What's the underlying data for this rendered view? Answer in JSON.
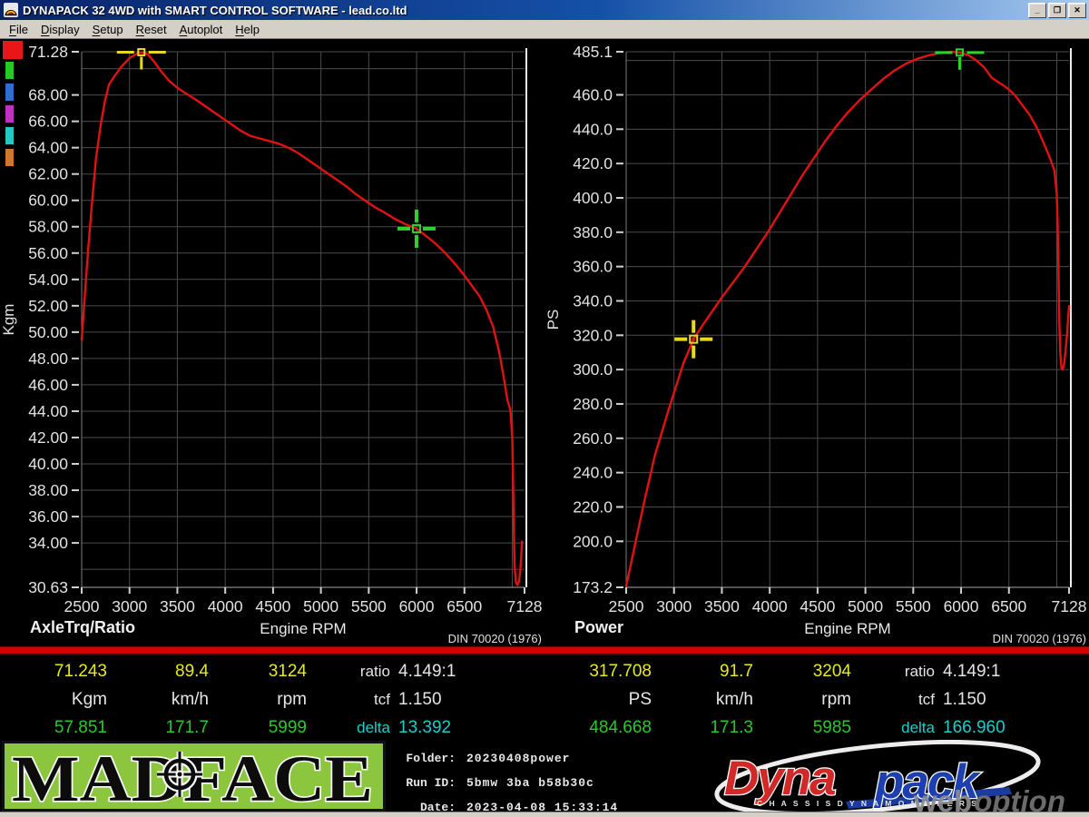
{
  "window": {
    "title": "DYNAPACK 32 4WD with SMART CONTROL SOFTWARE - lead.co.ltd",
    "minimize": "_",
    "restore": "❐",
    "close": "✕"
  },
  "menu": {
    "items": [
      {
        "hotkey": "F",
        "rest": "ile"
      },
      {
        "hotkey": "D",
        "rest": "isplay"
      },
      {
        "hotkey": "S",
        "rest": "etup"
      },
      {
        "hotkey": "R",
        "rest": "eset"
      },
      {
        "hotkey": "A",
        "rest": "utoplot"
      },
      {
        "hotkey": "H",
        "rest": "elp"
      }
    ]
  },
  "legend": {
    "colors": [
      "#e81616",
      "#22cc22",
      "#2e6ed4",
      "#c32ec3",
      "#22c8c8",
      "#d4762a"
    ]
  },
  "chart_data": [
    {
      "type": "line",
      "title": "AxleTrq/Ratio",
      "xlabel": "Engine RPM",
      "ylabel": "Kgm",
      "standard": "DIN 70020 (1976)",
      "xlim": [
        2500,
        7128
      ],
      "ylim": [
        30.63,
        71.28
      ],
      "x_ticks": [
        {
          "v": 2500,
          "t": "2500"
        },
        {
          "v": 3000,
          "t": "3000"
        },
        {
          "v": 3500,
          "t": "3500"
        },
        {
          "v": 4000,
          "t": "4000"
        },
        {
          "v": 4500,
          "t": "4500"
        },
        {
          "v": 5000,
          "t": "5000"
        },
        {
          "v": 5500,
          "t": "5500"
        },
        {
          "v": 6000,
          "t": "6000"
        },
        {
          "v": 6500,
          "t": "6500"
        },
        {
          "v": 7128,
          "t": "7128"
        }
      ],
      "grid_x": [
        3000,
        3500,
        4000,
        4500,
        5000,
        5500,
        6000,
        6500,
        7000
      ],
      "y_ticks": [
        {
          "v": 71.28,
          "t": "71.28"
        },
        {
          "v": 68,
          "t": "68.00"
        },
        {
          "v": 66,
          "t": "66.00"
        },
        {
          "v": 64,
          "t": "64.00"
        },
        {
          "v": 62,
          "t": "62.00"
        },
        {
          "v": 60,
          "t": "60.00"
        },
        {
          "v": 58,
          "t": "58.00"
        },
        {
          "v": 56,
          "t": "56.00"
        },
        {
          "v": 54,
          "t": "54.00"
        },
        {
          "v": 52,
          "t": "52.00"
        },
        {
          "v": 50,
          "t": "50.00"
        },
        {
          "v": 48,
          "t": "48.00"
        },
        {
          "v": 46,
          "t": "46.00"
        },
        {
          "v": 44,
          "t": "44.00"
        },
        {
          "v": 42,
          "t": "42.00"
        },
        {
          "v": 40,
          "t": "40.00"
        },
        {
          "v": 38,
          "t": "38.00"
        },
        {
          "v": 36,
          "t": "36.00"
        },
        {
          "v": 34,
          "t": "34.00"
        },
        {
          "v": 30.63,
          "t": "30.63"
        }
      ],
      "grid_y": [
        32,
        34,
        36,
        38,
        40,
        42,
        44,
        46,
        48,
        50,
        52,
        54,
        56,
        58,
        60,
        62,
        64,
        66,
        68,
        70
      ],
      "series": [
        {
          "name": "AxleTrq",
          "color": "#e01212",
          "points": [
            [
              2500,
              49.4
            ],
            [
              2535,
              53
            ],
            [
              2570,
              56.5
            ],
            [
              2610,
              60
            ],
            [
              2650,
              63.2
            ],
            [
              2700,
              65.8
            ],
            [
              2745,
              67.6
            ],
            [
              2785,
              68.8
            ],
            [
              2840,
              69.4
            ],
            [
              2910,
              70.1
            ],
            [
              3000,
              70.8
            ],
            [
              3080,
              71.15
            ],
            [
              3124,
              71.24
            ],
            [
              3190,
              71.1
            ],
            [
              3260,
              70.5
            ],
            [
              3330,
              69.8
            ],
            [
              3410,
              69.1
            ],
            [
              3490,
              68.6
            ],
            [
              3570,
              68.2
            ],
            [
              3660,
              67.8
            ],
            [
              3760,
              67.3
            ],
            [
              3860,
              66.8
            ],
            [
              3960,
              66.3
            ],
            [
              4060,
              65.8
            ],
            [
              4160,
              65.3
            ],
            [
              4260,
              64.9
            ],
            [
              4360,
              64.7
            ],
            [
              4460,
              64.5
            ],
            [
              4560,
              64.3
            ],
            [
              4660,
              64
            ],
            [
              4760,
              63.6
            ],
            [
              4860,
              63.1
            ],
            [
              4960,
              62.6
            ],
            [
              5060,
              62.1
            ],
            [
              5160,
              61.6
            ],
            [
              5260,
              61.1
            ],
            [
              5360,
              60.5
            ],
            [
              5460,
              60
            ],
            [
              5560,
              59.5
            ],
            [
              5660,
              59.1
            ],
            [
              5770,
              58.6
            ],
            [
              5880,
              58.2
            ],
            [
              5999,
              57.85
            ],
            [
              6100,
              57.3
            ],
            [
              6200,
              56.7
            ],
            [
              6300,
              56
            ],
            [
              6400,
              55.2
            ],
            [
              6500,
              54.3
            ],
            [
              6580,
              53.5
            ],
            [
              6660,
              52.7
            ],
            [
              6730,
              51.7
            ],
            [
              6800,
              50.4
            ],
            [
              6860,
              48.6
            ],
            [
              6910,
              46.6
            ],
            [
              6950,
              44.8
            ],
            [
              6980,
              44.1
            ],
            [
              7000,
              42
            ],
            [
              7008,
              39
            ],
            [
              7015,
              35.5
            ],
            [
              7024,
              32.3
            ],
            [
              7038,
              31
            ],
            [
              7055,
              30.8
            ],
            [
              7070,
              31.1
            ],
            [
              7083,
              31.9
            ],
            [
              7094,
              33
            ],
            [
              7101,
              34.1
            ]
          ]
        }
      ],
      "cursors": [
        {
          "shape": "hbar",
          "color": "#e8d820",
          "rpm": 3124,
          "value": 71.243
        },
        {
          "shape": "cross",
          "color": "#2ed22e",
          "rpm": 5999,
          "value": 57.851
        }
      ]
    },
    {
      "type": "line",
      "title": "Power",
      "xlabel": "Engine RPM",
      "ylabel": "PS",
      "standard": "DIN 70020 (1976)",
      "xlim": [
        2500,
        7128
      ],
      "ylim": [
        173.2,
        485.1
      ],
      "x_ticks": [
        {
          "v": 2500,
          "t": "2500"
        },
        {
          "v": 3000,
          "t": "3000"
        },
        {
          "v": 3500,
          "t": "3500"
        },
        {
          "v": 4000,
          "t": "4000"
        },
        {
          "v": 4500,
          "t": "4500"
        },
        {
          "v": 5000,
          "t": "5000"
        },
        {
          "v": 5500,
          "t": "5500"
        },
        {
          "v": 6000,
          "t": "6000"
        },
        {
          "v": 6500,
          "t": "6500"
        },
        {
          "v": 7128,
          "t": "7128"
        }
      ],
      "grid_x": [
        3000,
        3500,
        4000,
        4500,
        5000,
        5500,
        6000,
        6500,
        7000
      ],
      "y_ticks": [
        {
          "v": 485.1,
          "t": "485.1"
        },
        {
          "v": 460,
          "t": "460.0"
        },
        {
          "v": 440,
          "t": "440.0"
        },
        {
          "v": 420,
          "t": "420.0"
        },
        {
          "v": 400,
          "t": "400.0"
        },
        {
          "v": 380,
          "t": "380.0"
        },
        {
          "v": 360,
          "t": "360.0"
        },
        {
          "v": 340,
          "t": "340.0"
        },
        {
          "v": 320,
          "t": "320.0"
        },
        {
          "v": 300,
          "t": "300.0"
        },
        {
          "v": 280,
          "t": "280.0"
        },
        {
          "v": 260,
          "t": "260.0"
        },
        {
          "v": 240,
          "t": "240.0"
        },
        {
          "v": 220,
          "t": "220.0"
        },
        {
          "v": 200,
          "t": "200.0"
        },
        {
          "v": 173.2,
          "t": "173.2"
        }
      ],
      "grid_y": [
        200,
        220,
        240,
        260,
        280,
        300,
        320,
        340,
        360,
        380,
        400,
        420,
        440,
        460,
        480
      ],
      "series": [
        {
          "name": "Power",
          "color": "#e01212",
          "points": [
            [
              2500,
              174
            ],
            [
              2550,
              187
            ],
            [
              2600,
              200
            ],
            [
              2650,
              213
            ],
            [
              2700,
              226
            ],
            [
              2750,
              238
            ],
            [
              2800,
              250
            ],
            [
              2870,
              263
            ],
            [
              2940,
              276
            ],
            [
              3020,
              290
            ],
            [
              3100,
              304
            ],
            [
              3204,
              317.7
            ],
            [
              3300,
              326
            ],
            [
              3400,
              334
            ],
            [
              3500,
              342
            ],
            [
              3620,
              351
            ],
            [
              3740,
              360
            ],
            [
              3860,
              370
            ],
            [
              3980,
              380
            ],
            [
              4100,
              391
            ],
            [
              4220,
              402
            ],
            [
              4340,
              413
            ],
            [
              4460,
              423
            ],
            [
              4580,
              433
            ],
            [
              4700,
              442
            ],
            [
              4820,
              450
            ],
            [
              4940,
              457
            ],
            [
              5060,
              463
            ],
            [
              5180,
              469
            ],
            [
              5300,
              474
            ],
            [
              5420,
              478
            ],
            [
              5540,
              481
            ],
            [
              5660,
              483
            ],
            [
              5790,
              484.5
            ],
            [
              5900,
              485
            ],
            [
              5985,
              484.7
            ],
            [
              6080,
              483
            ],
            [
              6160,
              480
            ],
            [
              6240,
              476
            ],
            [
              6320,
              470
            ],
            [
              6400,
              467
            ],
            [
              6480,
              464
            ],
            [
              6560,
              460
            ],
            [
              6640,
              454
            ],
            [
              6720,
              448
            ],
            [
              6800,
              440
            ],
            [
              6870,
              431
            ],
            [
              6930,
              423
            ],
            [
              6975,
              416
            ],
            [
              7000,
              402
            ],
            [
              7010,
              382
            ],
            [
              7018,
              358
            ],
            [
              7026,
              330
            ],
            [
              7036,
              310
            ],
            [
              7048,
              301
            ],
            [
              7062,
              300
            ],
            [
              7078,
              304
            ],
            [
              7092,
              311
            ],
            [
              7106,
              320
            ],
            [
              7118,
              329
            ],
            [
              7128,
              337
            ]
          ]
        }
      ],
      "cursors": [
        {
          "shape": "cross",
          "color": "#e8d820",
          "rpm": 3204,
          "value": 317.708,
          "dot": "#cc2020"
        },
        {
          "shape": "hbar",
          "color": "#2ed22e",
          "rpm": 5985,
          "value": 484.668
        }
      ]
    }
  ],
  "readouts": [
    {
      "rows": [
        {
          "cells": [
            "71.243",
            "89.4",
            "3124"
          ],
          "label": "ratio",
          "side": "4.149:1"
        },
        {
          "cells": [
            "Kgm",
            "km/h",
            "rpm"
          ],
          "label": "tcf",
          "side": "1.150"
        },
        {
          "cells": [
            "57.851",
            "171.7",
            "5999"
          ],
          "label": "delta",
          "side": "13.392"
        }
      ]
    },
    {
      "rows": [
        {
          "cells": [
            "317.708",
            "91.7",
            "3204"
          ],
          "label": "ratio",
          "side": "4.149:1"
        },
        {
          "cells": [
            "PS",
            "km/h",
            "rpm"
          ],
          "label": "tcf",
          "side": "1.150"
        },
        {
          "cells": [
            "484.668",
            "171.3",
            "5985"
          ],
          "label": "delta",
          "side": "166.960"
        }
      ]
    }
  ],
  "footer": {
    "madface": "MADFACE",
    "info": {
      "folder_label": "Folder:",
      "folder": "20230408power",
      "run_label": "Run ID:",
      "run": "5bmw 3ba b58b30c",
      "date_label": "Date:",
      "date": "2023-04-08 15:33:14"
    },
    "dynapack": {
      "dyna": "Dyna",
      "pack": "pack",
      "tagline": "C H A S S I S     D Y N A M O M E T E R S",
      "wm1": "web",
      "wm2": "option"
    }
  }
}
